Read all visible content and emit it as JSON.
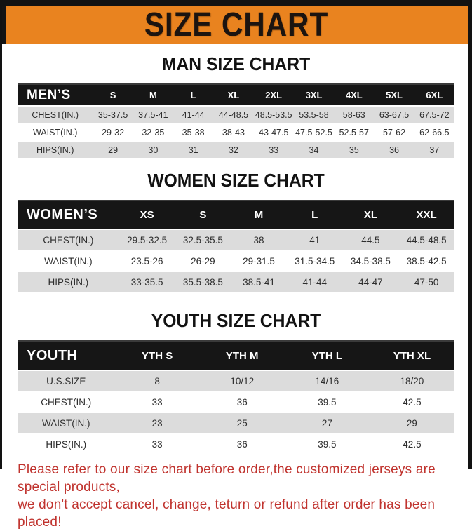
{
  "banner": {
    "title": "SIZE CHART",
    "bg_color": "#E9831F",
    "text_color": "#1c1410"
  },
  "colors": {
    "table_header_bg": "#161616",
    "row_alt_gray": "#DCDCDC",
    "footer_red": "#C0332E",
    "frame_black": "#121212"
  },
  "sections": [
    {
      "id": "men",
      "title": "MAN SIZE CHART",
      "table": {
        "label": "MEN’S",
        "sizes": [
          "S",
          "M",
          "L",
          "XL",
          "2XL",
          "3XL",
          "4XL",
          "5XL",
          "6XL"
        ],
        "rows": [
          {
            "label": "CHEST(IN.)",
            "values": [
              "35-37.5",
              "37.5-41",
              "41-44",
              "44-48.5",
              "48.5-53.5",
              "53.5-58",
              "58-63",
              "63-67.5",
              "67.5-72"
            ]
          },
          {
            "label": "WAIST(IN.)",
            "values": [
              "29-32",
              "32-35",
              "35-38",
              "38-43",
              "43-47.5",
              "47.5-52.5",
              "52.5-57",
              "57-62",
              "62-66.5"
            ]
          },
          {
            "label": "HIPS(IN.)",
            "values": [
              "29",
              "30",
              "31",
              "32",
              "33",
              "34",
              "35",
              "36",
              "37"
            ]
          }
        ]
      }
    },
    {
      "id": "women",
      "title": "WOMEN SIZE CHART",
      "table": {
        "label": "WOMEN’S",
        "sizes": [
          "XS",
          "S",
          "M",
          "L",
          "XL",
          "XXL"
        ],
        "rows": [
          {
            "label": "CHEST(IN.)",
            "values": [
              "29.5-32.5",
              "32.5-35.5",
              "38",
              "41",
              "44.5",
              "44.5-48.5"
            ]
          },
          {
            "label": "WAIST(IN.)",
            "values": [
              "23.5-26",
              "26-29",
              "29-31.5",
              "31.5-34.5",
              "34.5-38.5",
              "38.5-42.5"
            ]
          },
          {
            "label": "HIPS(IN.)",
            "values": [
              "33-35.5",
              "35.5-38.5",
              "38.5-41",
              "41-44",
              "44-47",
              "47-50"
            ]
          }
        ]
      }
    },
    {
      "id": "youth",
      "title": "YOUTH SIZE CHART",
      "table": {
        "label": "YOUTH",
        "sizes": [
          "YTH S",
          "YTH M",
          "YTH L",
          "YTH XL"
        ],
        "rows": [
          {
            "label": "U.S.SIZE",
            "values": [
              "8",
              "10/12",
              "14/16",
              "18/20"
            ]
          },
          {
            "label": "CHEST(IN.)",
            "values": [
              "33",
              "36",
              "39.5",
              "42.5"
            ]
          },
          {
            "label": "WAIST(IN.)",
            "values": [
              "23",
              "25",
              "27",
              "29"
            ]
          },
          {
            "label": "HIPS(IN.)",
            "values": [
              "33",
              "36",
              "39.5",
              "42.5"
            ]
          }
        ]
      }
    }
  ],
  "footer": {
    "line1": "Please refer to our size chart before order,the customized jerseys are special products,",
    "line2": "we don't accept cancel, change, teturn or refund after order has been placed!"
  }
}
